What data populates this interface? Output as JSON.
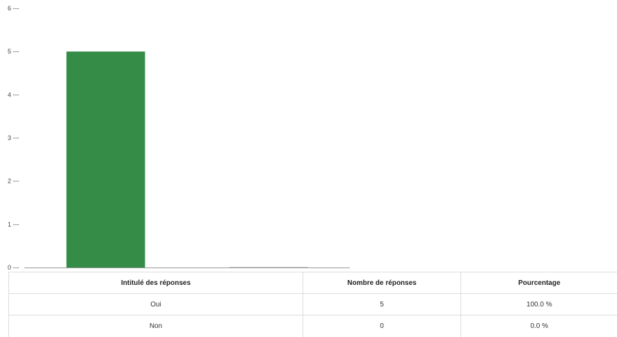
{
  "chart_data": {
    "type": "bar",
    "categories": [
      "Oui",
      "Non"
    ],
    "values": [
      5,
      0
    ],
    "ylim": [
      0,
      6
    ],
    "yticks": [
      {
        "value": 0,
        "label": "0 ---"
      },
      {
        "value": 1,
        "label": "1 ---"
      },
      {
        "value": 2,
        "label": "2 ---"
      },
      {
        "value": 3,
        "label": "3 ---"
      },
      {
        "value": 4,
        "label": "4 ---"
      },
      {
        "value": 5,
        "label": "5 ---"
      },
      {
        "value": 6,
        "label": "6 ---"
      }
    ],
    "grid": false,
    "colors": [
      "#358c47",
      "#c8c8c8"
    ]
  },
  "table": {
    "headers": [
      "Intitulé des réponses",
      "Nombre de réponses",
      "Pourcentage"
    ],
    "rows": [
      [
        "Oui",
        "5",
        "100.0 %"
      ],
      [
        "Non",
        "0",
        "0.0 %"
      ]
    ]
  }
}
